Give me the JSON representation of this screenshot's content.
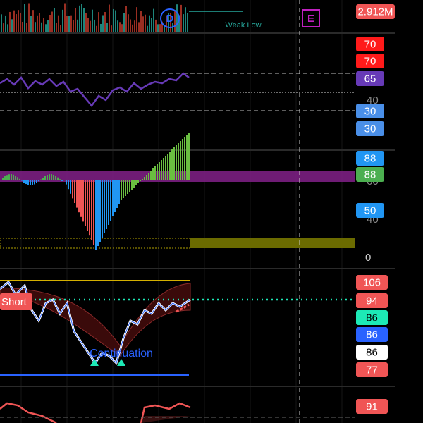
{
  "volume_pane": {
    "badge": {
      "text": "2.912M",
      "color": "#f05555"
    },
    "marker_d": "D",
    "marker_e": "E",
    "note": "Weak Low"
  },
  "rsi_pane": {
    "axis_labels": [
      "40"
    ],
    "badges": [
      {
        "text": "70",
        "color": "#ff1a1a"
      },
      {
        "text": "70",
        "color": "#ff1a1a"
      },
      {
        "text": "65",
        "color": "#673ab7"
      },
      {
        "text": "30",
        "color": "#4a8fe8"
      },
      {
        "text": "30",
        "color": "#4a8fe8"
      }
    ]
  },
  "macd_pane": {
    "axis_labels": [
      "60",
      "40",
      "0"
    ],
    "badges": [
      {
        "text": "88",
        "color": "#2196f3"
      },
      {
        "text": "88",
        "color": "#4caf50"
      },
      {
        "text": "50",
        "color": "#2196f3"
      }
    ]
  },
  "oscillator_pane": {
    "short_tag": "Short",
    "signal_label": "Continuation",
    "badges": [
      {
        "text": "106",
        "color": "#f05555"
      },
      {
        "text": "94",
        "color": "#f05555"
      },
      {
        "text": "86",
        "color": "#1de9b6"
      },
      {
        "text": "86",
        "color": "#2962ff"
      },
      {
        "text": "86",
        "color": "#ffffff"
      },
      {
        "text": "77",
        "color": "#f05555"
      }
    ]
  },
  "bottom_pane": {
    "badges": [
      {
        "text": "91",
        "color": "#f05555"
      }
    ]
  }
}
